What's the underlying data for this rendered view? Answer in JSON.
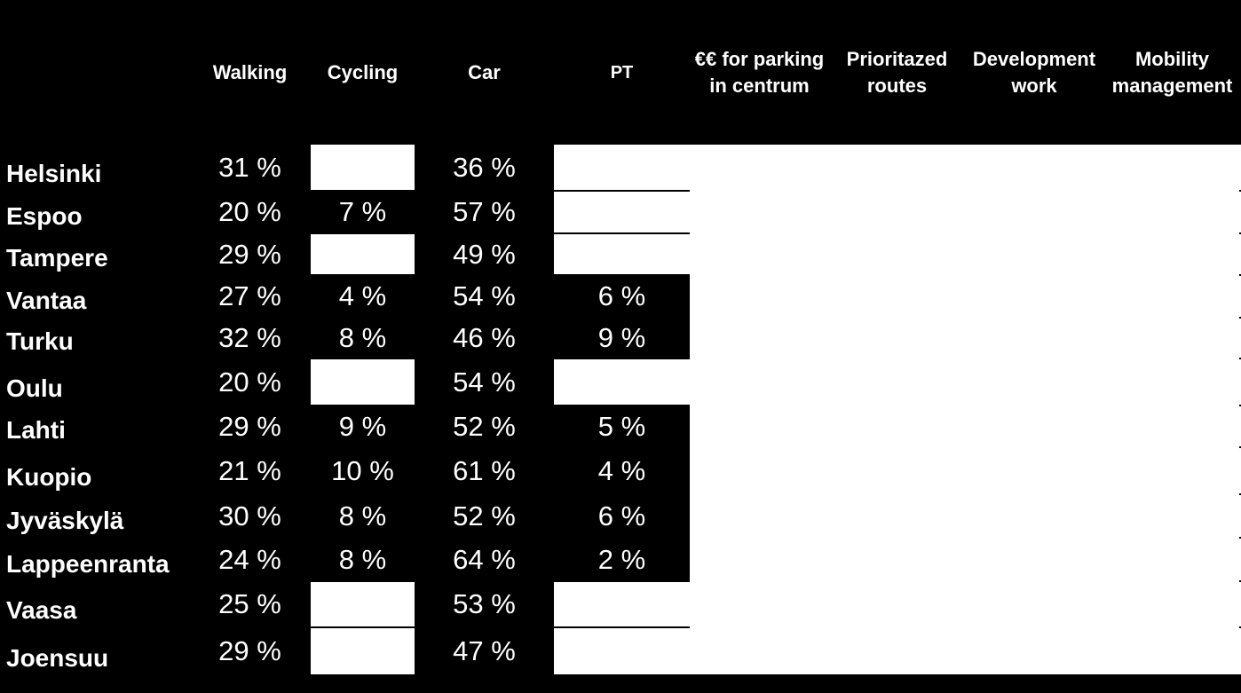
{
  "chart_data": {
    "type": "table",
    "columns": [
      "",
      "Walking",
      "Cycling",
      "Car",
      "PT",
      "€€ for parking in centrum",
      "Prioritazed routes",
      "Development work",
      "Mobility management"
    ],
    "rows": [
      {
        "city": "Helsinki",
        "walking": "31 %",
        "cycling": "",
        "car": "36 %",
        "pt": ""
      },
      {
        "city": "Espoo",
        "walking": "20 %",
        "cycling": "7 %",
        "car": "57 %",
        "pt": ""
      },
      {
        "city": "Tampere",
        "walking": "29 %",
        "cycling": "",
        "car": "49 %",
        "pt": ""
      },
      {
        "city": "Vantaa",
        "walking": "27 %",
        "cycling": "4 %",
        "car": "54 %",
        "pt": "6 %"
      },
      {
        "city": "Turku",
        "walking": "32 %",
        "cycling": "8 %",
        "car": "46 %",
        "pt": "9 %"
      },
      {
        "city": "Oulu",
        "walking": "20 %",
        "cycling": "",
        "car": "54 %",
        "pt": ""
      },
      {
        "city": "Lahti",
        "walking": "29 %",
        "cycling": "9 %",
        "car": "52 %",
        "pt": "5 %"
      },
      {
        "city": "Kuopio",
        "walking": "21 %",
        "cycling": "10 %",
        "car": "61 %",
        "pt": "4 %"
      },
      {
        "city": "Jyväskylä",
        "walking": "30 %",
        "cycling": "8 %",
        "car": "52 %",
        "pt": "6 %"
      },
      {
        "city": "Lappeenranta",
        "walking": "24 %",
        "cycling": "8 %",
        "car": "64 %",
        "pt": "2 %"
      },
      {
        "city": "Vaasa",
        "walking": "25 %",
        "cycling": "",
        "car": "53 %",
        "pt": ""
      },
      {
        "city": "Joensuu",
        "walking": "29 %",
        "cycling": "",
        "car": "47 %",
        "pt": ""
      }
    ]
  },
  "colors": {
    "cell": "#000000",
    "blank": "#ffffff",
    "text": "#ffffff",
    "border": "#ffffff"
  }
}
